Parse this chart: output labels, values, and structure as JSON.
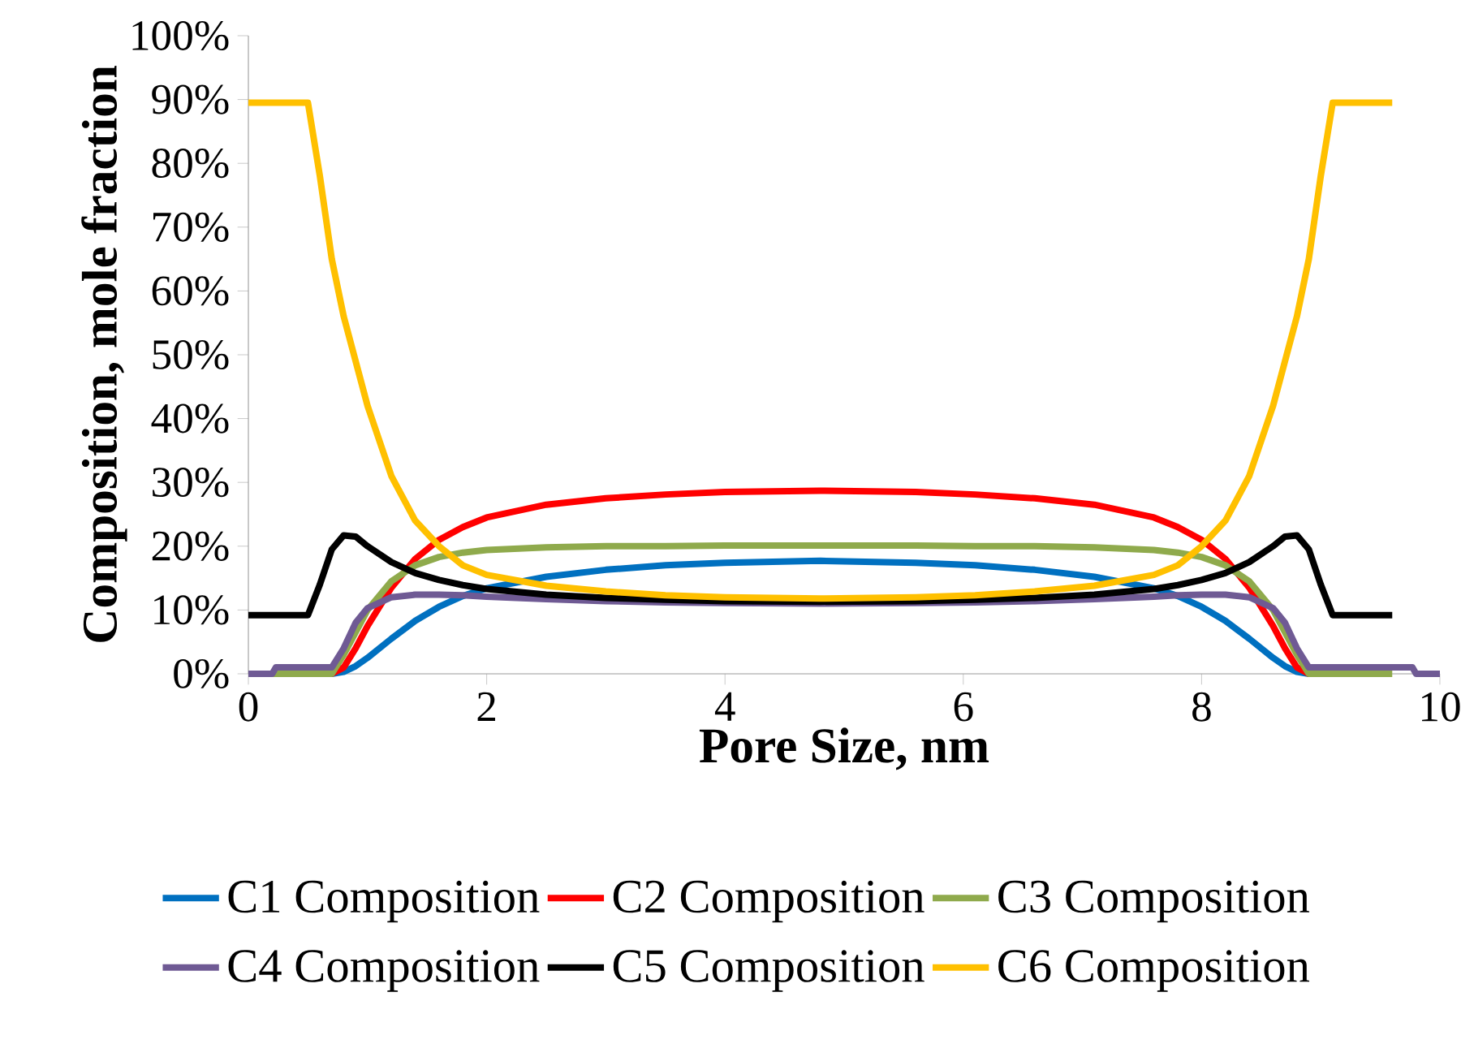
{
  "chart_data": {
    "type": "line",
    "xlabel": "Pore Size, nm",
    "ylabel": "Composition, mole fraction",
    "x": [
      0,
      0.5,
      0.6,
      0.7,
      0.8,
      0.9,
      1.0,
      1.2,
      1.4,
      1.6,
      1.8,
      2.0,
      2.5,
      3.0,
      3.5,
      4.0,
      4.8,
      5.6,
      6.1,
      6.6,
      7.1,
      7.6,
      7.8,
      8.0,
      8.2,
      8.4,
      8.6,
      8.7,
      8.8,
      8.9,
      9.0,
      9.1,
      9.6
    ],
    "xlim": [
      0,
      10
    ],
    "xticks": [
      0,
      2,
      4,
      6,
      8,
      10
    ],
    "ylim": [
      0,
      100
    ],
    "yticks": [
      {
        "value": 0,
        "label": "0%"
      },
      {
        "value": 10,
        "label": "10%"
      },
      {
        "value": 20,
        "label": "20%"
      },
      {
        "value": 30,
        "label": "30%"
      },
      {
        "value": 40,
        "label": "40%"
      },
      {
        "value": 50,
        "label": "50%"
      },
      {
        "value": 60,
        "label": "60%"
      },
      {
        "value": 70,
        "label": "70%"
      },
      {
        "value": 80,
        "label": "80%"
      },
      {
        "value": 90,
        "label": "90%"
      },
      {
        "value": 100,
        "label": "100%"
      }
    ],
    "legend": "bottom",
    "grid": false,
    "line_style": "solid",
    "series": [
      {
        "name": "C1 Composition",
        "color": "#0070c0",
        "values": [
          null,
          null,
          0,
          0,
          0.3,
          1.2,
          2.5,
          5.5,
          8.3,
          10.5,
          12.2,
          13.4,
          15.2,
          16.3,
          17,
          17.4,
          17.7,
          17.4,
          17,
          16.3,
          15.2,
          13.4,
          12.2,
          10.5,
          8.3,
          5.5,
          2.5,
          1.2,
          0.3,
          0,
          0,
          null,
          null
        ]
      },
      {
        "name": "C2 Composition",
        "color": "#ff0000",
        "values": [
          null,
          null,
          0,
          0,
          1,
          4,
          7.5,
          13.5,
          18,
          21,
          23,
          24.5,
          26.5,
          27.5,
          28.1,
          28.5,
          28.7,
          28.5,
          28.1,
          27.5,
          26.5,
          24.5,
          23,
          21,
          18,
          13.5,
          7.5,
          4,
          1,
          0,
          0,
          null,
          null
        ]
      },
      {
        "name": "C3 Composition",
        "color": "#8faa4c",
        "values": [
          0,
          0,
          0,
          0,
          3,
          6.5,
          10,
          14.5,
          17,
          18.3,
          19,
          19.4,
          19.8,
          20,
          20,
          20.1,
          20.1,
          20.1,
          20,
          20,
          19.8,
          19.4,
          19,
          18.3,
          17,
          14.5,
          10,
          6.5,
          3,
          0,
          0,
          0,
          0
        ]
      },
      {
        "name": "C4 Composition",
        "color": "#6f5a94",
        "x": [
          0,
          0.2,
          0.23,
          0.7,
          0.8,
          0.9,
          1.0,
          1.2,
          1.4,
          1.6,
          1.8,
          2.0,
          2.5,
          3.0,
          3.5,
          4.0,
          4.8,
          5.6,
          6.1,
          6.6,
          7.1,
          7.6,
          7.8,
          8.0,
          8.2,
          8.4,
          8.6,
          8.7,
          8.8,
          8.9,
          9.77,
          9.8,
          10
        ],
        "values": [
          0,
          0,
          1,
          1,
          4,
          8,
          10.3,
          12,
          12.4,
          12.4,
          12.3,
          12.1,
          11.7,
          11.4,
          11.2,
          11.1,
          11,
          11.1,
          11.2,
          11.4,
          11.7,
          12.1,
          12.3,
          12.4,
          12.4,
          12,
          10.3,
          8,
          4,
          1,
          1,
          0,
          0
        ]
      },
      {
        "name": "C5 Composition",
        "color": "#000000",
        "values": [
          9.2,
          9.2,
          14,
          19.5,
          21.7,
          21.5,
          20,
          17.5,
          15.8,
          14.7,
          13.9,
          13.3,
          12.4,
          11.9,
          11.6,
          11.4,
          11.3,
          11.4,
          11.6,
          11.9,
          12.4,
          13.3,
          13.9,
          14.7,
          15.8,
          17.5,
          20,
          21.5,
          21.7,
          19.5,
          14,
          9.2,
          9.2
        ]
      },
      {
        "name": "C6 Composition",
        "color": "#ffc000",
        "values": [
          89.5,
          89.5,
          78,
          65,
          56,
          49,
          42,
          31,
          24,
          20,
          17,
          15.5,
          13.8,
          12.9,
          12.3,
          12,
          11.8,
          12,
          12.3,
          12.9,
          13.8,
          15.5,
          17,
          20,
          24,
          31,
          42,
          49,
          56,
          65,
          78,
          89.5,
          89.5
        ]
      }
    ]
  }
}
